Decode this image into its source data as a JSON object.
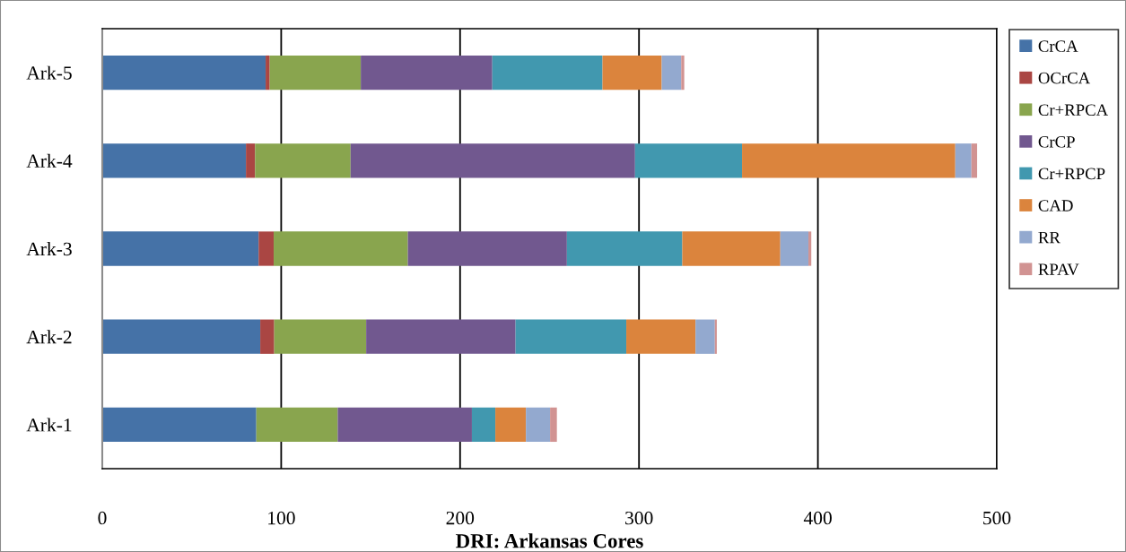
{
  "chart_data": {
    "type": "bar",
    "orientation": "horizontal",
    "stacked": true,
    "xlabel": "DRI: Arkansas Cores",
    "categories": [
      "Ark-5",
      "Ark-4",
      "Ark-3",
      "Ark-2",
      "Ark-1"
    ],
    "series": [
      {
        "name": "CrCA",
        "color": "#4572a7",
        "values": [
          91.3,
          80.3,
          87.4,
          88.3,
          86.1
        ]
      },
      {
        "name": "OCrCA",
        "color": "#aa4643",
        "values": [
          2.3,
          5.1,
          8.4,
          7.8,
          null
        ]
      },
      {
        "name": "Cr+RPCA",
        "color": "#89a54e",
        "values": [
          50.9,
          53.4,
          75.0,
          51.4,
          45.5
        ]
      },
      {
        "name": "CrCP",
        "color": "#71588f",
        "values": [
          73.5,
          159.0,
          88.9,
          83.5,
          75.0
        ]
      },
      {
        "name": "Cr+RPCP",
        "color": "#4198af",
        "values": [
          61.6,
          59.8,
          64.5,
          61.9,
          13.1
        ]
      },
      {
        "name": "CAD",
        "color": "#db843d",
        "values": [
          33.1,
          119.2,
          54.8,
          38.7,
          17.1
        ]
      },
      {
        "name": "RR",
        "color": "#93a9cf",
        "values": [
          10.9,
          9.0,
          15.7,
          10.8,
          13.5
        ]
      },
      {
        "name": "RPAV",
        "color": "#d19392",
        "values": [
          1.7,
          3.2,
          1.6,
          1.1,
          3.8
        ]
      }
    ],
    "xlim": [
      0,
      500
    ],
    "xticks": [
      0,
      100,
      200,
      300,
      400,
      500
    ],
    "grid": "x",
    "legend": "right"
  }
}
